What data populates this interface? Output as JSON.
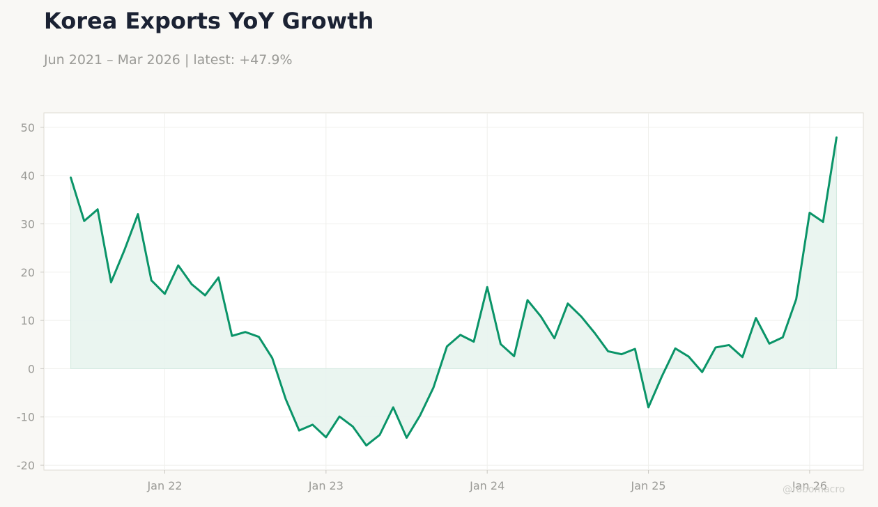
{
  "header": {
    "title": "Korea Exports YoY Growth",
    "subtitle": "Jun 2021 – Mar 2026 | latest: +47.9%"
  },
  "watermark": "@robomacro",
  "colors": {
    "line": "#0a9468",
    "fill": "#e9f5f0",
    "plot_background": "#ffffff",
    "page_background": "#f9f8f5",
    "grid": "#efefec",
    "axis_text": "#9a9a96"
  },
  "chart_data": {
    "type": "area",
    "title": "Korea Exports YoY Growth",
    "subtitle": "Jun 2021 – Mar 2026 | latest: +47.9%",
    "xlabel": "",
    "ylabel": "",
    "grid": true,
    "legend": "none",
    "x_range": [
      "2021-04-01",
      "2026-05-01"
    ],
    "ylim": [
      -21,
      53
    ],
    "y_ticks": [
      -20,
      -10,
      0,
      10,
      20,
      30,
      40,
      50
    ],
    "x_ticks": [
      {
        "date": "2022-01",
        "label": "Jan 22"
      },
      {
        "date": "2023-01",
        "label": "Jan 23"
      },
      {
        "date": "2024-01",
        "label": "Jan 24"
      },
      {
        "date": "2025-01",
        "label": "Jan 25"
      },
      {
        "date": "2026-01",
        "label": "Jan 26"
      }
    ],
    "series": [
      {
        "x": [
          "2021-06",
          "2021-07",
          "2021-08",
          "2021-09",
          "2021-10",
          "2021-11",
          "2021-12",
          "2022-01",
          "2022-02",
          "2022-03",
          "2022-04",
          "2022-05",
          "2022-06",
          "2022-07",
          "2022-08",
          "2022-09",
          "2022-10",
          "2022-11",
          "2022-12",
          "2023-01",
          "2023-02",
          "2023-03",
          "2023-04",
          "2023-05",
          "2023-06",
          "2023-07",
          "2023-08",
          "2023-09",
          "2023-10",
          "2023-11",
          "2023-12",
          "2024-01",
          "2024-02",
          "2024-03",
          "2024-04",
          "2024-05",
          "2024-06",
          "2024-07",
          "2024-08",
          "2024-09",
          "2024-10",
          "2024-11",
          "2024-12",
          "2025-01",
          "2025-02",
          "2025-03",
          "2025-04",
          "2025-05",
          "2025-06",
          "2025-07",
          "2025-08",
          "2025-09",
          "2025-10",
          "2025-11",
          "2025-12",
          "2026-01",
          "2026-02",
          "2026-03"
        ],
        "values": [
          39.6,
          30.6,
          33.0,
          17.9,
          24.6,
          32.0,
          18.3,
          15.5,
          21.4,
          17.5,
          15.2,
          18.9,
          6.8,
          7.6,
          6.6,
          2.2,
          -6.3,
          -12.8,
          -11.6,
          -14.2,
          -9.9,
          -12.0,
          -15.9,
          -13.7,
          -8.0,
          -14.3,
          -9.7,
          -3.9,
          4.6,
          7.0,
          5.6,
          16.9,
          5.1,
          2.6,
          14.2,
          10.8,
          6.3,
          13.5,
          10.8,
          7.4,
          3.6,
          3.0,
          4.1,
          -8.0,
          -1.6,
          4.2,
          2.5,
          -0.7,
          4.4,
          4.9,
          2.4,
          10.5,
          5.2,
          6.5,
          14.4,
          32.3,
          30.4,
          47.9
        ]
      }
    ]
  }
}
